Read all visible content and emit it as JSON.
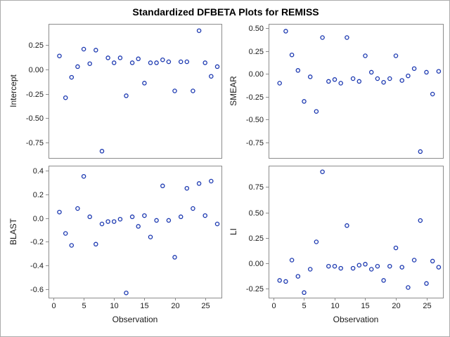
{
  "title": "Standardized DFBETA Plots for REMISS",
  "colors": {
    "marker": "#1A37B0",
    "frame": "#8c8c8c",
    "tick": "#8c8c8c",
    "text": "#1a1a1a",
    "background": "#ffffff",
    "figure_border": "#ababab"
  },
  "chart_data": {
    "type": "scatter",
    "layout": "2x2-grid",
    "marker": "open-circle",
    "title": "Standardized DFBETA Plots for REMISS",
    "xlabel": "Observation",
    "xlim": [
      -0.8,
      27.7
    ],
    "x_ticks": [
      0,
      5,
      10,
      15,
      20,
      25
    ],
    "x_tick_labels": [
      "0",
      "5",
      "10",
      "15",
      "20",
      "25"
    ],
    "observations": [
      1,
      2,
      3,
      4,
      5,
      6,
      7,
      8,
      9,
      10,
      11,
      12,
      13,
      14,
      15,
      16,
      17,
      18,
      19,
      20,
      21,
      22,
      23,
      24,
      25,
      26,
      27
    ],
    "panels": [
      {
        "ylabel": "Intercept",
        "ylim": [
          -0.91,
          0.47
        ],
        "yticks": [
          0.25,
          0.0,
          -0.25,
          -0.5,
          -0.75
        ],
        "ytick_labels": [
          "0.25",
          "0.00",
          "-0.25",
          "-0.50",
          "-0.75"
        ],
        "values": [
          0.14,
          -0.29,
          -0.08,
          0.03,
          0.21,
          0.06,
          0.2,
          -0.84,
          0.12,
          0.07,
          0.12,
          -0.27,
          0.07,
          0.11,
          -0.14,
          0.07,
          0.07,
          0.1,
          0.08,
          -0.22,
          0.08,
          0.08,
          -0.22,
          0.4,
          0.07,
          -0.07,
          0.03
        ]
      },
      {
        "ylabel": "SMEAR",
        "ylim": [
          -0.92,
          0.55
        ],
        "yticks": [
          0.5,
          0.25,
          0.0,
          -0.25,
          -0.5,
          -0.75
        ],
        "ytick_labels": [
          "0.50",
          "0.25",
          "0.00",
          "-0.25",
          "-0.50",
          "-0.75"
        ],
        "values": [
          -0.1,
          0.47,
          0.21,
          0.04,
          -0.3,
          -0.03,
          -0.41,
          0.4,
          -0.08,
          -0.06,
          -0.1,
          0.4,
          -0.05,
          -0.08,
          0.2,
          0.02,
          -0.05,
          -0.09,
          -0.05,
          0.2,
          -0.07,
          -0.02,
          0.06,
          -0.85,
          0.02,
          -0.22,
          0.03
        ]
      },
      {
        "ylabel": "BLAST",
        "ylim": [
          -0.67,
          0.44
        ],
        "yticks": [
          0.4,
          0.2,
          0.0,
          -0.2,
          -0.4,
          -0.6
        ],
        "ytick_labels": [
          "0.4",
          "0.2",
          "0.0",
          "-0.2",
          "-0.4",
          "-0.6"
        ],
        "values": [
          0.05,
          -0.13,
          -0.23,
          0.08,
          0.35,
          0.01,
          -0.22,
          -0.05,
          -0.03,
          -0.03,
          -0.01,
          -0.63,
          0.01,
          -0.07,
          0.02,
          -0.16,
          -0.02,
          0.27,
          -0.02,
          -0.33,
          0.01,
          0.25,
          0.08,
          0.29,
          0.02,
          0.31,
          -0.05
        ]
      },
      {
        "ylabel": "LI",
        "ylim": [
          -0.34,
          0.96
        ],
        "yticks": [
          0.75,
          0.5,
          0.25,
          0.0,
          -0.25
        ],
        "ytick_labels": [
          "0.75",
          "0.50",
          "0.25",
          "0.00",
          "-0.25"
        ],
        "values": [
          -0.17,
          -0.18,
          0.03,
          -0.13,
          -0.29,
          -0.06,
          0.21,
          0.9,
          -0.03,
          -0.03,
          -0.05,
          0.37,
          -0.05,
          -0.02,
          -0.01,
          -0.06,
          -0.03,
          -0.17,
          -0.03,
          0.15,
          -0.04,
          -0.24,
          0.03,
          0.42,
          -0.2,
          0.02,
          -0.04
        ]
      }
    ]
  }
}
